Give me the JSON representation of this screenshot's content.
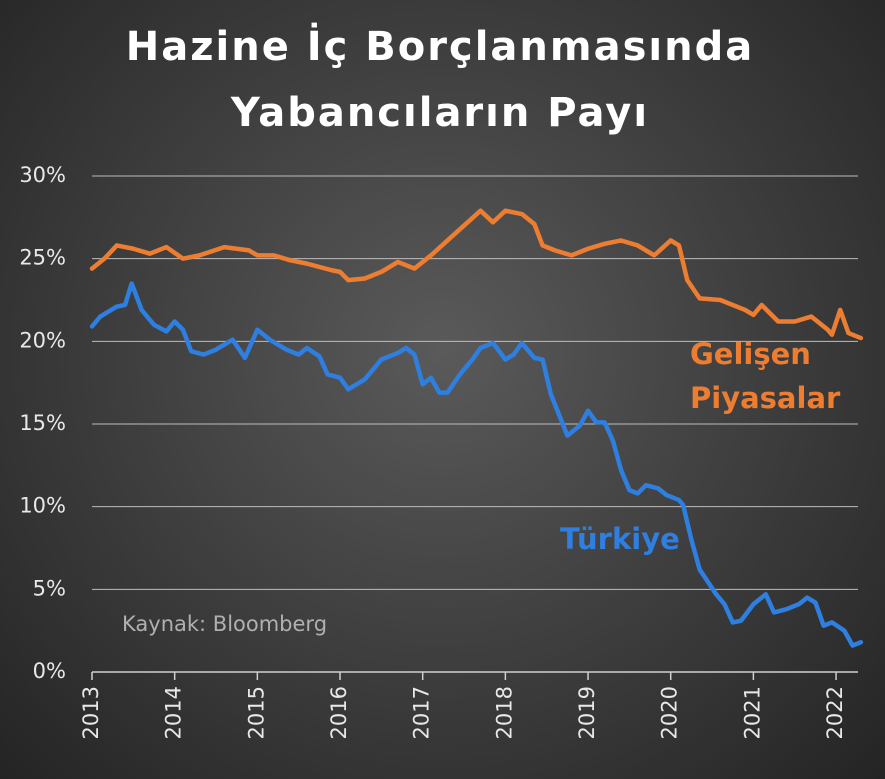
{
  "chart_data": {
    "type": "line",
    "title": "Hazine İç Borçlanmasında Yabancıların Payı",
    "source": "Kaynak: Bloomberg",
    "xlim": [
      2013,
      2022.35
    ],
    "xticks": [
      2013,
      2014,
      2015,
      2016,
      2017,
      2018,
      2019,
      2020,
      2021,
      2022
    ],
    "ylim": [
      0,
      30
    ],
    "yticks": [
      {
        "value": 0,
        "label": "0%"
      },
      {
        "value": 5,
        "label": "5%"
      },
      {
        "value": 10,
        "label": "10%"
      },
      {
        "value": 15,
        "label": "15%"
      },
      {
        "value": 20,
        "label": "20%"
      },
      {
        "value": 25,
        "label": "25%"
      },
      {
        "value": 30,
        "label": "30%"
      }
    ],
    "grid": true,
    "series": [
      {
        "name": "Gelişen Piyasalar",
        "color": "#ed7d31",
        "x": [
          2013.0,
          2013.15,
          2013.3,
          2013.5,
          2013.7,
          2013.9,
          2014.1,
          2014.3,
          2014.6,
          2014.9,
          2015.0,
          2015.2,
          2015.4,
          2015.6,
          2015.9,
          2016.0,
          2016.1,
          2016.3,
          2016.5,
          2016.7,
          2016.9,
          2017.1,
          2017.3,
          2017.5,
          2017.7,
          2017.85,
          2018.0,
          2018.2,
          2018.35,
          2018.45,
          2018.6,
          2018.8,
          2019.0,
          2019.2,
          2019.4,
          2019.6,
          2019.8,
          2020.0,
          2020.1,
          2020.2,
          2020.35,
          2020.6,
          2020.9,
          2021.0,
          2021.1,
          2021.3,
          2021.5,
          2021.7,
          2021.9,
          2021.95,
          2022.05,
          2022.15,
          2022.3
        ],
        "values": [
          24.4,
          25.0,
          25.8,
          25.6,
          25.3,
          25.7,
          25.0,
          25.2,
          25.7,
          25.5,
          25.2,
          25.2,
          24.9,
          24.7,
          24.3,
          24.2,
          23.7,
          23.8,
          24.2,
          24.8,
          24.4,
          25.2,
          26.1,
          27.0,
          27.9,
          27.2,
          27.9,
          27.7,
          27.1,
          25.8,
          25.5,
          25.2,
          25.6,
          25.9,
          26.1,
          25.8,
          25.2,
          26.1,
          25.8,
          23.7,
          22.6,
          22.5,
          21.9,
          21.6,
          22.2,
          21.2,
          21.2,
          21.5,
          20.7,
          20.4,
          21.9,
          20.5,
          20.2
        ]
      },
      {
        "name": "Türkiye",
        "color": "#2e7fe0",
        "x": [
          2013.0,
          2013.1,
          2013.3,
          2013.4,
          2013.48,
          2013.6,
          2013.75,
          2013.9,
          2014.0,
          2014.1,
          2014.2,
          2014.35,
          2014.5,
          2014.7,
          2014.85,
          2015.0,
          2015.15,
          2015.35,
          2015.5,
          2015.6,
          2015.75,
          2015.85,
          2016.0,
          2016.1,
          2016.3,
          2016.5,
          2016.7,
          2016.8,
          2016.9,
          2017.0,
          2017.1,
          2017.2,
          2017.3,
          2017.45,
          2017.6,
          2017.7,
          2017.85,
          2018.0,
          2018.1,
          2018.2,
          2018.35,
          2018.45,
          2018.55,
          2018.75,
          2018.9,
          2019.0,
          2019.1,
          2019.2,
          2019.3,
          2019.4,
          2019.5,
          2019.6,
          2019.7,
          2019.85,
          2019.95,
          2020.1,
          2020.15,
          2020.25,
          2020.35,
          2020.55,
          2020.65,
          2020.75,
          2020.85,
          2021.0,
          2021.15,
          2021.25,
          2021.4,
          2021.55,
          2021.65,
          2021.75,
          2021.85,
          2021.95,
          2022.1,
          2022.2,
          2022.3
        ],
        "values": [
          20.9,
          21.5,
          22.1,
          22.2,
          23.5,
          21.9,
          21.0,
          20.6,
          21.2,
          20.7,
          19.4,
          19.2,
          19.5,
          20.1,
          19.0,
          20.7,
          20.1,
          19.5,
          19.2,
          19.6,
          19.1,
          18.0,
          17.8,
          17.1,
          17.7,
          18.9,
          19.3,
          19.6,
          19.2,
          17.4,
          17.8,
          16.9,
          16.9,
          18.0,
          18.9,
          19.6,
          19.9,
          18.9,
          19.2,
          19.9,
          19.0,
          18.9,
          16.8,
          14.3,
          14.9,
          15.8,
          15.1,
          15.1,
          14.0,
          12.2,
          11.0,
          10.8,
          11.3,
          11.1,
          10.7,
          10.4,
          10.1,
          8.0,
          6.2,
          4.7,
          4.1,
          3.0,
          3.1,
          4.1,
          4.7,
          3.6,
          3.8,
          4.1,
          4.5,
          4.2,
          2.8,
          3.0,
          2.5,
          1.6,
          1.8
        ]
      }
    ]
  }
}
